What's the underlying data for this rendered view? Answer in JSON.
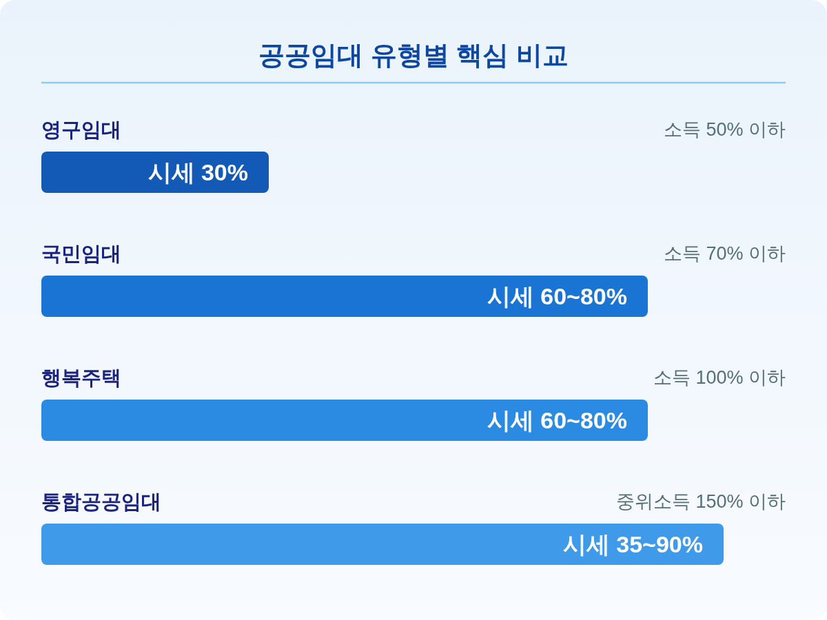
{
  "chart_data": {
    "type": "bar",
    "orientation": "horizontal",
    "title": "공공임대 유형별 핵심 비교",
    "categories": [
      "영구임대",
      "국민임대",
      "행복주택",
      "통합공공임대"
    ],
    "values": [
      30,
      80,
      80,
      90
    ],
    "value_labels": [
      "시세 30%",
      "시세 60~80%",
      "시세 60~80%",
      "시세 35~90%"
    ],
    "colors": [
      "#125ab6",
      "#1a74d3",
      "#2b8ae2",
      "#3f9be9"
    ],
    "annotations": [
      "소득 50% 이하",
      "소득 70% 이하",
      "소득 100% 이하",
      "중위소득 150% 이하"
    ]
  }
}
